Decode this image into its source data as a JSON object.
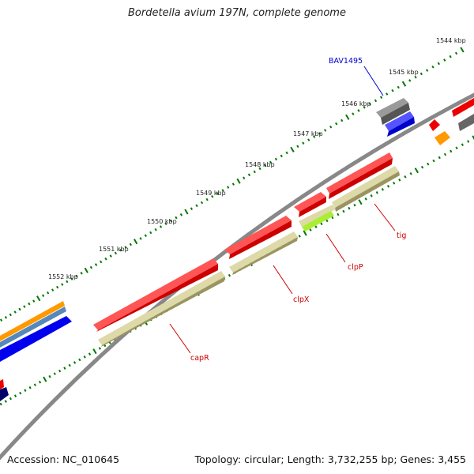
{
  "title": "Bordetella avium 197N, complete genome",
  "footer": {
    "accession": "Accession: NC_010645",
    "topology": "Topology: circular; Length: 3,732,255 bp; Genes: 3,455"
  },
  "scale_labels": [
    "1544 kbp",
    "1545 kbp",
    "1546 kbp",
    "1547 kbp",
    "1548 kbp",
    "1549 kbp",
    "1550 kbp",
    "1551 kbp",
    "1552 kbp"
  ],
  "gene_labels": {
    "bav1495": "BAV1495",
    "tig": "tig",
    "clpP": "clpP",
    "clpX": "clpX",
    "capR": "capR"
  },
  "colors": {
    "forward_cds": "#ee0000",
    "cog_olive": "#b5b07a",
    "cog_lime": "#aaee33",
    "reverse_blue": "#0000ee",
    "gray_feature": "#666666",
    "orange_feature": "#ff9900",
    "steel_feature": "#5588bb",
    "navy_feature": "#000066",
    "backbone": "#888888",
    "tick_green": "#007700",
    "label_red": "#cc0000",
    "label_blue": "#0000cc"
  }
}
